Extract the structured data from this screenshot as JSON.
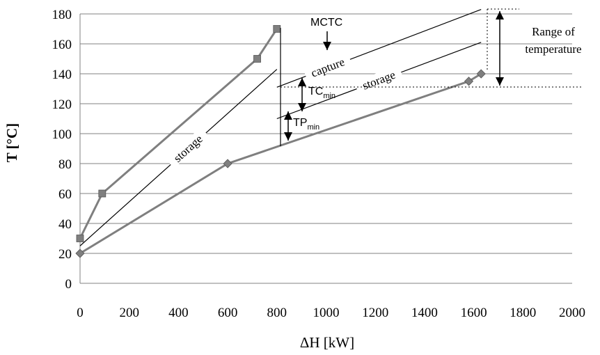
{
  "chart_data": {
    "type": "line",
    "xlabel": "ΔH [kW]",
    "ylabel": "T [°C]",
    "xlim": [
      0,
      2000
    ],
    "ylim": [
      0,
      180
    ],
    "x_ticks": [
      0,
      200,
      400,
      600,
      800,
      1000,
      1200,
      1400,
      1600,
      1800,
      2000
    ],
    "y_ticks": [
      0,
      20,
      40,
      60,
      80,
      100,
      120,
      140,
      160,
      180
    ],
    "grid": "horizontal",
    "colors": {
      "line": "#7f7f7f",
      "marker": "#7f7f7f",
      "guide": "#000000",
      "grid": "#808080"
    },
    "series": [
      {
        "marker": "square",
        "x": [
          0,
          90,
          720,
          800
        ],
        "y": [
          30,
          60,
          150,
          170
        ]
      },
      {
        "marker": "diamond",
        "x": [
          0,
          600,
          1580,
          1630
        ],
        "y": [
          20,
          80,
          135,
          140
        ]
      }
    ],
    "guide_lines": [
      {
        "label": "storage",
        "x": [
          0,
          800
        ],
        "y": [
          25,
          143
        ]
      },
      {
        "label": "capture",
        "x": [
          800,
          1630
        ],
        "y": [
          131,
          183
        ]
      },
      {
        "label": "storage",
        "x": [
          800,
          1630
        ],
        "y": [
          110,
          161
        ]
      }
    ],
    "annotations": {
      "mctc": "MCTC",
      "tc_main": "TC",
      "tc_sub": "min",
      "tp_main": "TP",
      "tp_sub": "min",
      "range_line1": "Range of",
      "range_line2": "temperature"
    }
  }
}
